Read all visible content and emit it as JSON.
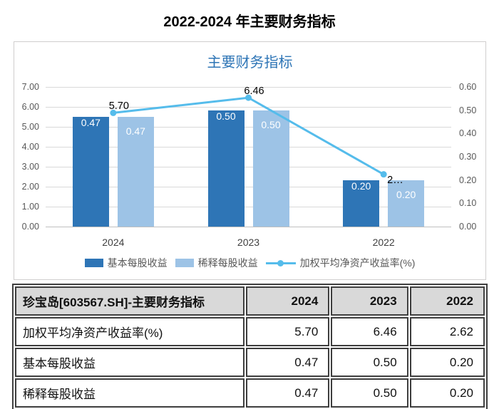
{
  "page": {
    "title": "2022-2024 年主要财务指标"
  },
  "chart": {
    "title": "主要财务指标",
    "title_color": "#2E75B6"
  },
  "chart_data": {
    "type": "bar",
    "subtype": "bar-line-combo",
    "title": "主要财务指标",
    "categories": [
      "2024",
      "2023",
      "2022"
    ],
    "bar_series": [
      {
        "key": "basic-eps",
        "name": "基本每股收益",
        "axis": "right",
        "color": "#2E75B6",
        "values": [
          0.47,
          0.5,
          0.2
        ],
        "labels": [
          "0.47",
          "0.50",
          "0.20"
        ]
      },
      {
        "key": "diluted-eps",
        "name": "稀释每股收益",
        "axis": "right",
        "color": "#9DC3E6",
        "values": [
          0.47,
          0.5,
          0.2
        ],
        "labels": [
          "0.47",
          "0.50",
          "0.20"
        ]
      }
    ],
    "line_series": {
      "key": "weighted-avg-roe",
      "name": "加权平均净资产收益率(%)",
      "axis": "left",
      "color": "#55BCEB",
      "values": [
        5.7,
        6.46,
        2.62
      ],
      "labels": [
        "5.70",
        "6.46",
        "2…"
      ]
    },
    "left_axis": {
      "min": 0,
      "max": 7,
      "step": 1,
      "ticks": [
        "0.00",
        "1.00",
        "2.00",
        "3.00",
        "4.00",
        "5.00",
        "6.00",
        "7.00"
      ]
    },
    "right_axis": {
      "min": 0,
      "max": 0.6,
      "step": 0.1,
      "ticks": [
        "0.00",
        "0.10",
        "0.20",
        "0.30",
        "0.40",
        "0.50",
        "0.60"
      ]
    },
    "grid": true,
    "legend_position": "bottom",
    "grid_color": "#d9d9d9"
  },
  "table": {
    "header": [
      "珍宝岛[603567.SH]-主要财务指标",
      "2024",
      "2023",
      "2022"
    ],
    "rows": [
      [
        "加权平均净资产收益率(%)",
        "5.70",
        "6.46",
        "2.62"
      ],
      [
        "基本每股收益",
        "0.47",
        "0.50",
        "0.20"
      ],
      [
        "稀释每股收益",
        "0.47",
        "0.50",
        "0.20"
      ]
    ]
  }
}
